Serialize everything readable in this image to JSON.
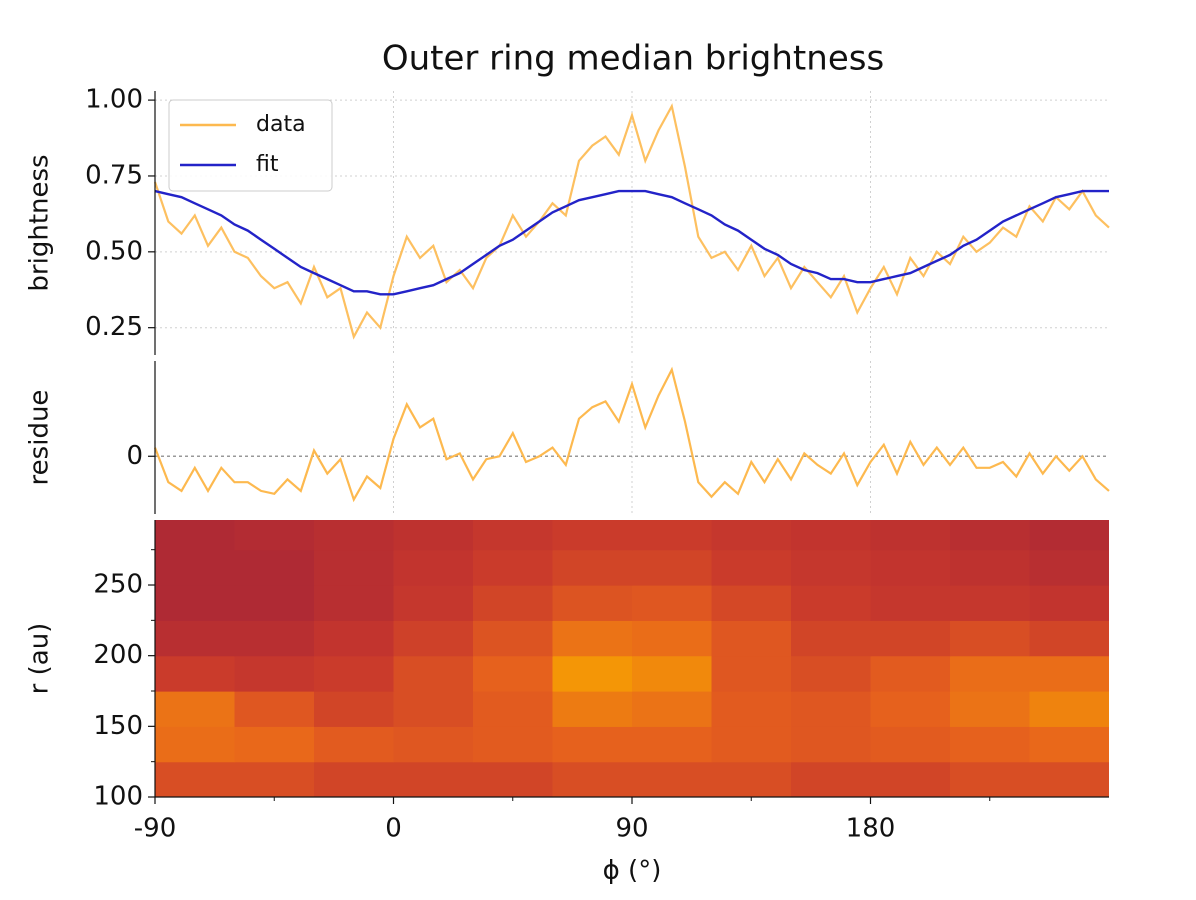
{
  "chart_data": [
    {
      "type": "line",
      "title": "Outer ring median brightness",
      "ylabel": "brightness",
      "x": [
        -90,
        -85,
        -80,
        -75,
        -70,
        -65,
        -60,
        -55,
        -50,
        -45,
        -40,
        -35,
        -30,
        -25,
        -20,
        -15,
        -10,
        -5,
        0,
        5,
        10,
        15,
        20,
        25,
        30,
        35,
        40,
        45,
        50,
        55,
        60,
        65,
        70,
        75,
        80,
        85,
        90,
        95,
        100,
        105,
        110,
        115,
        120,
        125,
        130,
        135,
        140,
        145,
        150,
        155,
        160,
        165,
        170,
        175,
        180,
        185,
        190,
        195,
        200,
        205,
        210,
        215,
        220,
        225,
        230,
        235,
        240,
        245,
        250,
        255,
        260,
        265,
        270
      ],
      "series": [
        {
          "name": "data",
          "color": "#fdb94f",
          "values": [
            0.73,
            0.6,
            0.56,
            0.62,
            0.52,
            0.58,
            0.5,
            0.48,
            0.42,
            0.38,
            0.4,
            0.33,
            0.45,
            0.35,
            0.38,
            0.22,
            0.3,
            0.25,
            0.42,
            0.55,
            0.48,
            0.52,
            0.4,
            0.44,
            0.38,
            0.48,
            0.52,
            0.62,
            0.55,
            0.6,
            0.66,
            0.62,
            0.8,
            0.85,
            0.88,
            0.82,
            0.95,
            0.8,
            0.9,
            0.98,
            0.78,
            0.55,
            0.48,
            0.5,
            0.44,
            0.52,
            0.42,
            0.48,
            0.38,
            0.45,
            0.4,
            0.35,
            0.42,
            0.3,
            0.38,
            0.45,
            0.36,
            0.48,
            0.42,
            0.5,
            0.46,
            0.55,
            0.5,
            0.53,
            0.58,
            0.55,
            0.65,
            0.6,
            0.68,
            0.64,
            0.7,
            0.62,
            0.58
          ]
        },
        {
          "name": "fit",
          "color": "#2323c8",
          "values": [
            0.7,
            0.69,
            0.68,
            0.66,
            0.64,
            0.62,
            0.59,
            0.57,
            0.54,
            0.51,
            0.48,
            0.45,
            0.43,
            0.41,
            0.39,
            0.37,
            0.37,
            0.36,
            0.36,
            0.37,
            0.38,
            0.39,
            0.41,
            0.43,
            0.46,
            0.49,
            0.52,
            0.54,
            0.57,
            0.6,
            0.63,
            0.65,
            0.67,
            0.68,
            0.69,
            0.7,
            0.7,
            0.7,
            0.69,
            0.68,
            0.66,
            0.64,
            0.62,
            0.59,
            0.57,
            0.54,
            0.51,
            0.49,
            0.46,
            0.44,
            0.43,
            0.41,
            0.41,
            0.4,
            0.4,
            0.41,
            0.42,
            0.43,
            0.45,
            0.47,
            0.49,
            0.52,
            0.54,
            0.57,
            0.6,
            0.62,
            0.64,
            0.66,
            0.68,
            0.69,
            0.7,
            0.7,
            0.7
          ]
        }
      ],
      "xlim": [
        -90,
        270
      ],
      "xticks": [
        -90,
        0,
        90,
        180
      ],
      "ylim": [
        0.16,
        1.03
      ],
      "yticks": [
        0.25,
        {
          "value": 0.5,
          "label": "0.50"
        },
        0.75,
        {
          "value": 1,
          "label": "1.00"
        }
      ],
      "grid": true,
      "legend": "upper left"
    },
    {
      "type": "line",
      "ylabel": "residue",
      "x": [
        -90,
        -85,
        -80,
        -75,
        -70,
        -65,
        -60,
        -55,
        -50,
        -45,
        -40,
        -35,
        -30,
        -25,
        -20,
        -15,
        -10,
        -5,
        0,
        5,
        10,
        15,
        20,
        25,
        30,
        35,
        40,
        45,
        50,
        55,
        60,
        65,
        70,
        75,
        80,
        85,
        90,
        95,
        100,
        105,
        110,
        115,
        120,
        125,
        130,
        135,
        140,
        145,
        150,
        155,
        160,
        165,
        170,
        175,
        180,
        185,
        190,
        195,
        200,
        205,
        210,
        215,
        220,
        225,
        230,
        235,
        240,
        245,
        250,
        255,
        260,
        265,
        270
      ],
      "series": [
        {
          "color": "#fdb94f",
          "values": [
            0.03,
            -0.09,
            -0.12,
            -0.04,
            -0.12,
            -0.04,
            -0.09,
            -0.09,
            -0.12,
            -0.13,
            -0.08,
            -0.12,
            0.02,
            -0.06,
            -0.01,
            -0.15,
            -0.07,
            -0.11,
            0.06,
            0.18,
            0.1,
            0.13,
            -0.01,
            0.01,
            -0.08,
            -0.01,
            0,
            0.08,
            -0.02,
            0,
            0.03,
            -0.03,
            0.13,
            0.17,
            0.19,
            0.12,
            0.25,
            0.1,
            0.21,
            0.3,
            0.12,
            -0.09,
            -0.14,
            -0.09,
            -0.13,
            -0.02,
            -0.09,
            -0.01,
            -0.08,
            0.01,
            -0.03,
            -0.06,
            0.01,
            -0.1,
            -0.02,
            0.04,
            -0.06,
            0.05,
            -0.03,
            0.03,
            -0.03,
            0.03,
            -0.04,
            -0.04,
            -0.02,
            -0.07,
            0.01,
            -0.06,
            0,
            -0.05,
            0,
            -0.08,
            -0.12
          ]
        }
      ],
      "xlim": [
        -90,
        270
      ],
      "xticks": [
        -90,
        0,
        90,
        180
      ],
      "ylim": [
        -0.2,
        0.33
      ],
      "yticks": [
        0
      ],
      "hline": 0,
      "grid": true
    },
    {
      "type": "heatmap",
      "xlabel": "ϕ (°)",
      "ylabel": "r (au)",
      "x": [
        -75,
        -45,
        -15,
        15,
        45,
        75,
        105,
        135,
        165,
        195,
        225,
        255
      ],
      "y": [
        112.5,
        137.5,
        162.5,
        187.5,
        212.5,
        237.5,
        262.5,
        287.5
      ],
      "z": [
        [
          0.55,
          0.55,
          0.5,
          0.5,
          0.5,
          0.55,
          0.55,
          0.55,
          0.5,
          0.5,
          0.55,
          0.55
        ],
        [
          0.7,
          0.68,
          0.62,
          0.6,
          0.62,
          0.65,
          0.65,
          0.62,
          0.6,
          0.62,
          0.65,
          0.68
        ],
        [
          0.72,
          0.6,
          0.5,
          0.55,
          0.62,
          0.75,
          0.72,
          0.62,
          0.6,
          0.65,
          0.72,
          0.78
        ],
        [
          0.45,
          0.42,
          0.45,
          0.55,
          0.65,
          0.85,
          0.8,
          0.6,
          0.55,
          0.62,
          0.7,
          0.7
        ],
        [
          0.35,
          0.35,
          0.4,
          0.48,
          0.58,
          0.72,
          0.7,
          0.6,
          0.5,
          0.5,
          0.55,
          0.5
        ],
        [
          0.3,
          0.3,
          0.35,
          0.42,
          0.5,
          0.58,
          0.6,
          0.52,
          0.45,
          0.42,
          0.42,
          0.4
        ],
        [
          0.3,
          0.3,
          0.35,
          0.4,
          0.45,
          0.5,
          0.5,
          0.45,
          0.42,
          0.4,
          0.38,
          0.35
        ],
        [
          0.3,
          0.32,
          0.35,
          0.38,
          0.42,
          0.45,
          0.45,
          0.42,
          0.4,
          0.38,
          0.35,
          0.32
        ]
      ],
      "zlim": [
        0.2,
        0.9
      ],
      "colormap": [
        "#9c1f3a",
        "#c8382c",
        "#e8641c",
        "#f7a400"
      ],
      "xlim": [
        -90,
        270
      ],
      "xticks": [
        -90,
        0,
        90,
        180
      ],
      "xminorticks": [
        -45,
        45,
        135,
        225
      ],
      "ylim": [
        100,
        296
      ],
      "yticks": [
        100,
        150,
        200,
        250
      ],
      "yminorticks": [
        125,
        175,
        225,
        275
      ]
    }
  ]
}
